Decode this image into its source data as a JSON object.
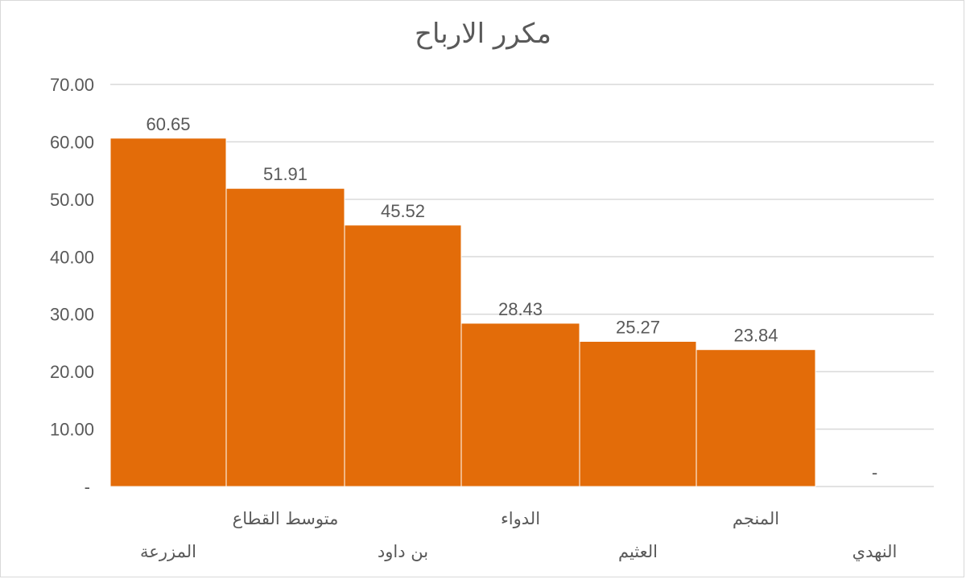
{
  "chart_data": {
    "type": "bar",
    "title": "مكرر الارباح",
    "categories": [
      "المزرعة",
      "متوسط القطاع",
      "بن داود",
      "الدواء",
      "العثيم",
      "المنجم",
      "النهدي"
    ],
    "values": [
      60.65,
      51.91,
      45.52,
      28.43,
      25.27,
      23.84,
      0
    ],
    "data_labels": [
      "60.65",
      "51.91",
      "45.52",
      "28.43",
      "25.27",
      "23.84",
      "-"
    ],
    "ylim": [
      0,
      70
    ],
    "yticks": [
      0,
      10,
      20,
      30,
      40,
      50,
      60,
      70
    ],
    "ytick_labels": [
      "-",
      "10.00",
      "20.00",
      "30.00",
      "40.00",
      "50.00",
      "60.00",
      "70.00"
    ],
    "grid": true,
    "bar_color": "#E36C09",
    "gridline_color": "#D9D9D9",
    "text_color": "#595959",
    "xlabel": "",
    "ylabel": ""
  }
}
